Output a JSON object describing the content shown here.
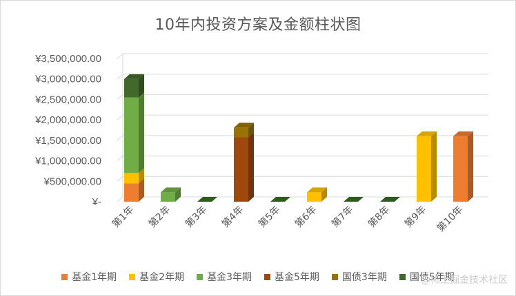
{
  "chart_data": {
    "type": "bar",
    "stacked": true,
    "title": "10年内投资方案及金额柱状图",
    "categories": [
      "第1年",
      "第2年",
      "第3年",
      "第4年",
      "第5年",
      "第6年",
      "第7年",
      "第8年",
      "第9年",
      "第10年"
    ],
    "y_ticks": [
      "¥-",
      "¥500,000.00",
      "¥1,000,000.00",
      "¥1,500,000.00",
      "¥2,000,000.00",
      "¥2,500,000.00",
      "¥3,000,000.00",
      "¥3,500,000.00"
    ],
    "ylim": [
      0,
      3500000
    ],
    "grid": true,
    "legend_position": "bottom",
    "series": [
      {
        "name": "基金1年期",
        "color": "#ED7D31",
        "values": [
          450000,
          0,
          0,
          0,
          0,
          0,
          0,
          0,
          0,
          1600000
        ]
      },
      {
        "name": "基金2年期",
        "color": "#FFC000",
        "values": [
          250000,
          0,
          0,
          0,
          0,
          230000,
          0,
          0,
          1600000,
          0
        ]
      },
      {
        "name": "基金3年期",
        "color": "#70AD47",
        "values": [
          1850000,
          230000,
          0,
          0,
          0,
          0,
          0,
          0,
          0,
          0
        ]
      },
      {
        "name": "基金5年期",
        "color": "#9E480E",
        "values": [
          0,
          0,
          0,
          1580000,
          0,
          0,
          0,
          0,
          0,
          0
        ]
      },
      {
        "name": "国债3年期",
        "color": "#997300",
        "values": [
          0,
          0,
          0,
          230000,
          0,
          0,
          0,
          0,
          0,
          0
        ]
      },
      {
        "name": "国债5年期",
        "color": "#43682B",
        "values": [
          450000,
          0,
          0,
          0,
          0,
          0,
          0,
          0,
          0,
          0
        ]
      }
    ]
  },
  "watermark": "@稀土掘金技术社区"
}
